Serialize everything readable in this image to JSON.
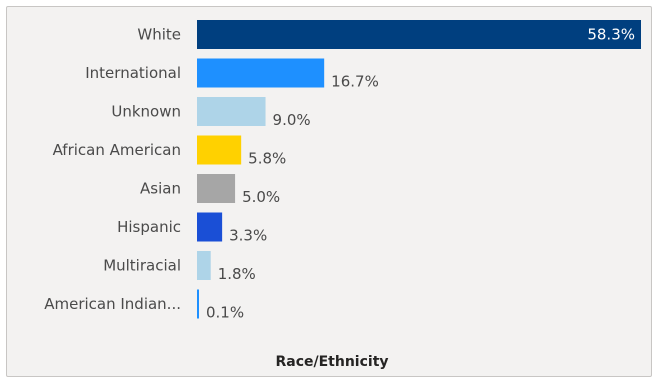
{
  "chart_data": {
    "type": "bar",
    "orientation": "horizontal",
    "categories": [
      "White",
      "International",
      "Unknown",
      "African American",
      "Asian",
      "Hispanic",
      "Multiracial",
      "American Indian..."
    ],
    "values": [
      58.3,
      16.7,
      9.0,
      5.8,
      5.0,
      3.3,
      1.8,
      0.1
    ],
    "value_labels": [
      "58.3%",
      "16.7%",
      "9.0%",
      "5.8%",
      "5.0%",
      "3.3%",
      "1.8%",
      "0.1%"
    ],
    "colors": [
      "#003f7f",
      "#1e90ff",
      "#aed4e8",
      "#ffd100",
      "#a6a6a6",
      "#1a4fd6",
      "#aed4e8",
      "#1e90ff"
    ],
    "title": "",
    "xlabel": "Race/Ethnicity",
    "ylabel": "",
    "xlim": [
      0,
      58.3
    ],
    "grid": false,
    "legend": "none"
  }
}
